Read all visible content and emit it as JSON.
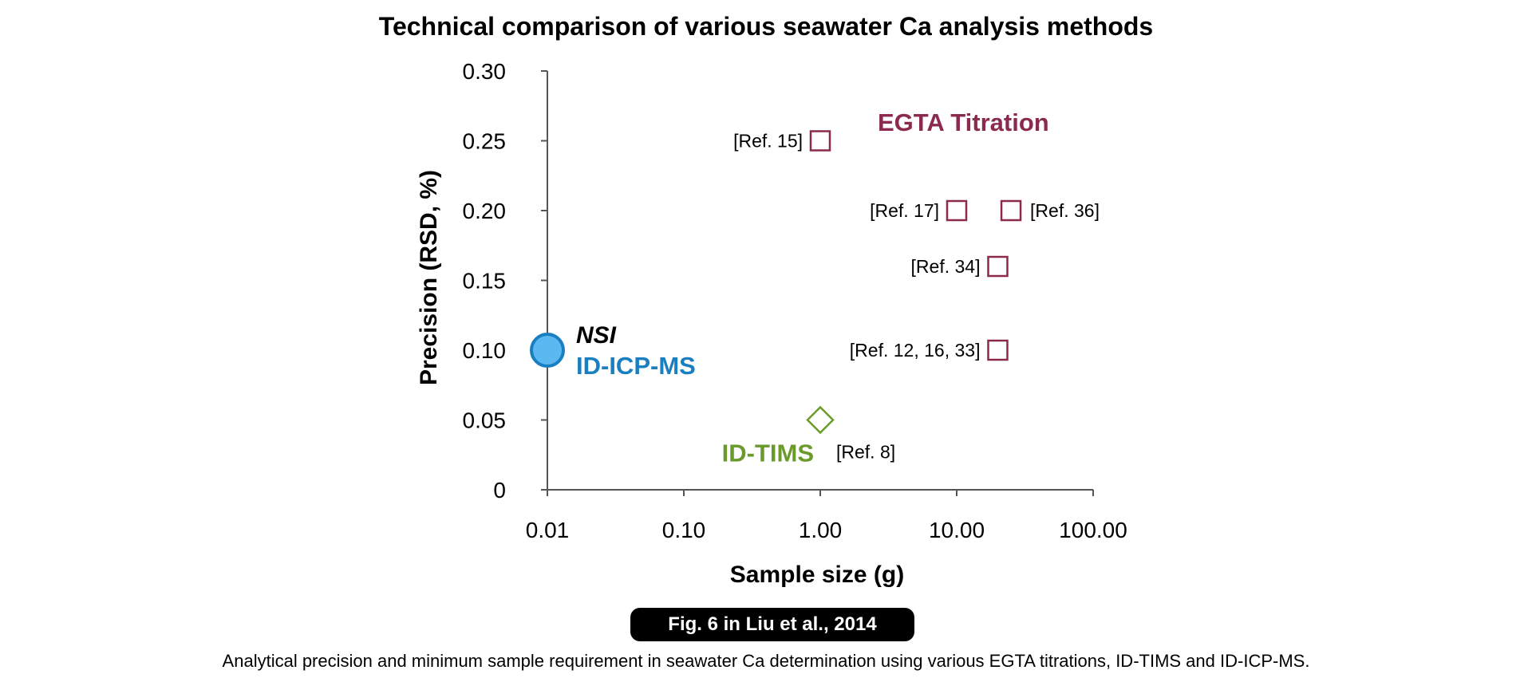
{
  "chart_data": {
    "type": "scatter",
    "title": "Technical comparison of various seawater Ca analysis methods",
    "xlabel": "Sample size (g)",
    "ylabel": "Precision (RSD, %)",
    "x_scale": "log",
    "xlim": [
      0.01,
      100
    ],
    "ylim": [
      0,
      0.3
    ],
    "x_ticks": [
      0.01,
      0.1,
      1,
      10,
      100
    ],
    "x_tick_labels": [
      "0.01",
      "0.10",
      "1.00",
      "10.00",
      "100.00"
    ],
    "y_ticks": [
      0,
      0.05,
      0.1,
      0.15,
      0.2,
      0.25,
      0.3
    ],
    "y_tick_labels": [
      "0",
      "0.05",
      "0.10",
      "0.15",
      "0.20",
      "0.25",
      "0.30"
    ],
    "grid": false,
    "series": [
      {
        "name": "EGTA Titration",
        "marker": "square-open",
        "color": "#8b2a4e",
        "points": [
          {
            "x": 1.0,
            "y": 0.25,
            "label": "[Ref. 15]",
            "label_side": "left"
          },
          {
            "x": 10,
            "y": 0.2,
            "label": "[Ref. 17]",
            "label_side": "left"
          },
          {
            "x": 25,
            "y": 0.2,
            "label": "[Ref. 36]",
            "label_side": "right"
          },
          {
            "x": 20,
            "y": 0.16,
            "label": "[Ref. 34]",
            "label_side": "left"
          },
          {
            "x": 20,
            "y": 0.1,
            "label": "[Ref. 12, 16, 33]",
            "label_side": "left"
          }
        ]
      },
      {
        "name": "ID-TIMS",
        "marker": "diamond-open",
        "color": "#6a9a2a",
        "points": [
          {
            "x": 1.0,
            "y": 0.05,
            "label": "[Ref. 8]",
            "label_side": "below-right"
          }
        ]
      },
      {
        "name": "ID-ICP-MS",
        "marker": "circle-filled",
        "color": "#1a7fc0",
        "fill": "#5bb8f0",
        "points": [
          {
            "x": 0.01,
            "y": 0.1,
            "label": "",
            "label_side": "right"
          }
        ]
      }
    ],
    "annotations": {
      "nsi": "NSI"
    }
  },
  "badge": "Fig. 6 in Liu et al., 2014",
  "caption": "Analytical precision and minimum sample requirement in seawater Ca determination using various EGTA titrations, ID-TIMS and ID-ICP-MS."
}
